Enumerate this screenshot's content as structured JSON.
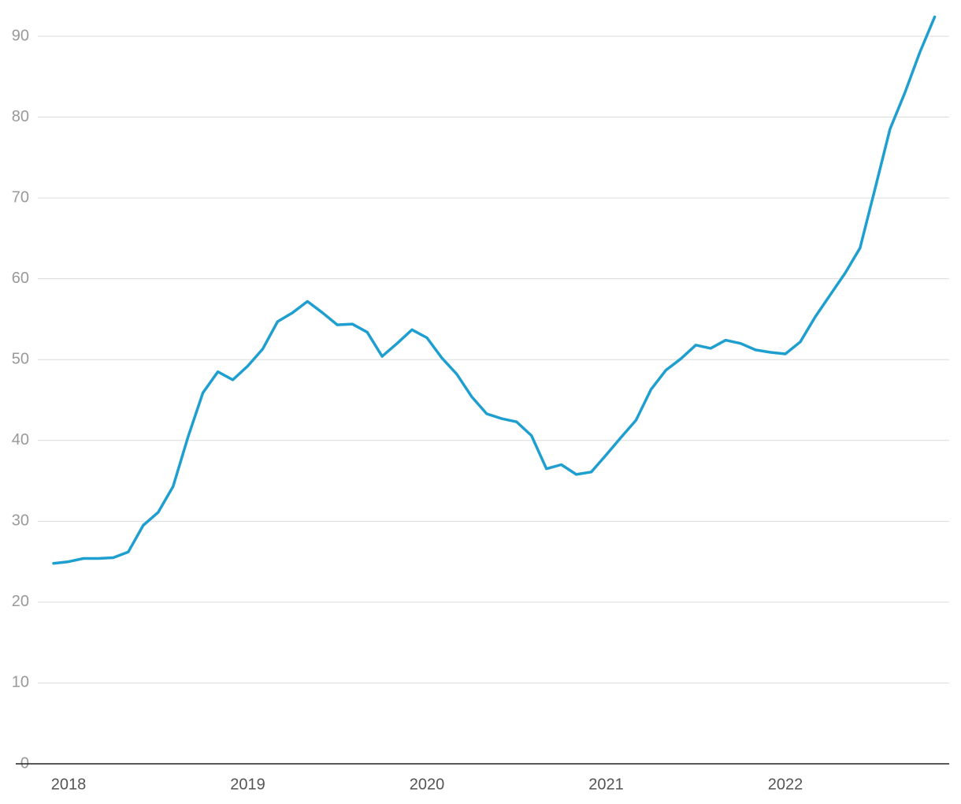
{
  "chart_data": {
    "type": "line",
    "categories": [
      null,
      "2018",
      null,
      null,
      null,
      null,
      null,
      null,
      null,
      null,
      null,
      null,
      null,
      "2019",
      null,
      null,
      null,
      null,
      null,
      null,
      null,
      null,
      null,
      null,
      null,
      "2020",
      null,
      null,
      null,
      null,
      null,
      null,
      null,
      null,
      null,
      null,
      null,
      "2021",
      null,
      null,
      null,
      null,
      null,
      null,
      null,
      null,
      null,
      null,
      null,
      "2022",
      null,
      null,
      null,
      null,
      null,
      null,
      null,
      null,
      null,
      null
    ],
    "series": [
      {
        "color": "#1f9fcf",
        "values": [
          24.8,
          25.0,
          25.4,
          25.4,
          25.5,
          26.2,
          29.5,
          31.1,
          34.3,
          40.4,
          45.9,
          48.5,
          47.5,
          49.2,
          51.3,
          54.7,
          55.8,
          57.2,
          55.8,
          54.3,
          54.4,
          53.4,
          50.4,
          52.0,
          53.7,
          52.7,
          50.2,
          48.2,
          45.4,
          43.3,
          42.7,
          42.3,
          40.6,
          36.5,
          37.0,
          35.8,
          36.1,
          38.2,
          40.4,
          42.5,
          46.3,
          48.7,
          50.1,
          51.8,
          51.4,
          52.4,
          52.0,
          51.2,
          50.9,
          50.7,
          52.2,
          55.3,
          58.0,
          60.7,
          63.8,
          71.1,
          78.5,
          83.0,
          88.0,
          92.4
        ]
      }
    ],
    "ylim": [
      0,
      90
    ],
    "yticks": [
      0,
      10,
      20,
      30,
      40,
      50,
      60,
      70,
      80,
      90
    ],
    "grid": true
  }
}
